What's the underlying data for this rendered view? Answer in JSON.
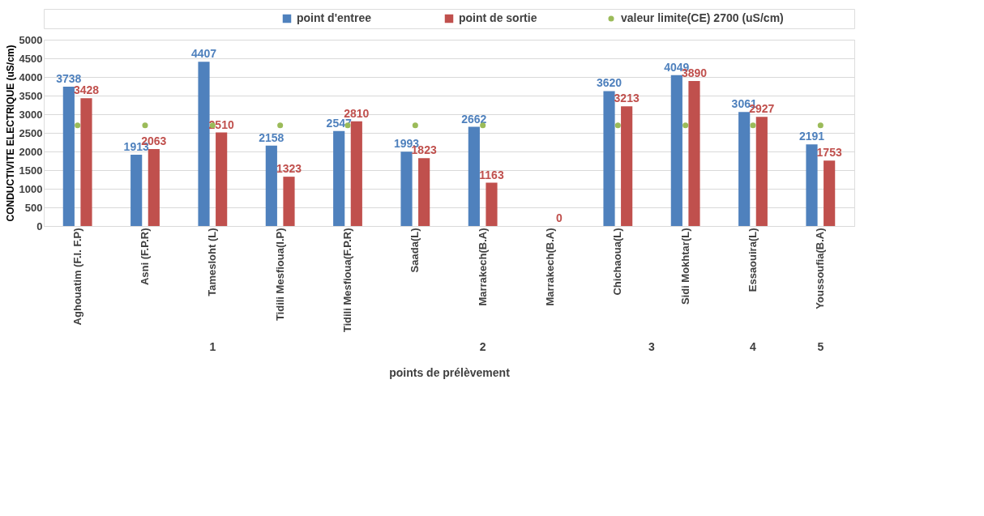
{
  "chart_data": {
    "type": "bar",
    "xlabel": "points de prélèvement",
    "ylabel": "CONDUCTIVITE ELECTRIQUE (uS/cm)",
    "categories": [
      "Aghouatim (F.I. F.P)",
      "Asni (F.P.R)",
      "Tamesloht (L)",
      "Tidili Mesfioua(I.P)",
      "Tidili Mesfioua(F.P.R)",
      "Saada(L)",
      "Marrakech(B.A)",
      "Marrakech(B.A)",
      "Chichaoua(L)",
      "Sidi Mokhtar(L)",
      "Essaouira(L)",
      "Youssoufia(B.A)"
    ],
    "series": [
      {
        "name": "point d'entree",
        "color": "#4f81bd",
        "values": [
          3738,
          1913,
          4407,
          2158,
          2547,
          1993,
          2662,
          null,
          3620,
          4049,
          3061,
          2191
        ],
        "value_labels": [
          "3738",
          "1913",
          "4407",
          "2158",
          "2547",
          "1993",
          "2662",
          null,
          "3620",
          "4049",
          "3061",
          "2191"
        ]
      },
      {
        "name": "point de sortie",
        "color": "#c0504d",
        "values": [
          3428,
          2063,
          2510,
          1323,
          2810,
          1823,
          1163,
          0,
          3213,
          3890,
          2927,
          1753
        ],
        "value_labels": [
          "3428",
          "2063",
          "2510",
          "1323",
          "2810",
          "1823",
          "1163",
          "0",
          "3213",
          "3890",
          "2927",
          "1753"
        ]
      },
      {
        "name": "valeur limite(CE) 2700 (uS/cm)",
        "type": "scatter",
        "marker": "circle",
        "color": "#9bbb59",
        "values": [
          2700,
          2700,
          2700,
          2700,
          2700,
          2700,
          2700,
          null,
          2700,
          2700,
          2700,
          2700
        ]
      }
    ],
    "ylim": [
      0,
      5000
    ],
    "yticks": [
      0,
      500,
      1000,
      1500,
      2000,
      2500,
      3000,
      3500,
      4000,
      4500,
      5000
    ],
    "grid": "y",
    "legend": "top",
    "annotations": [
      "1",
      "2",
      "3",
      "4",
      "5"
    ]
  }
}
